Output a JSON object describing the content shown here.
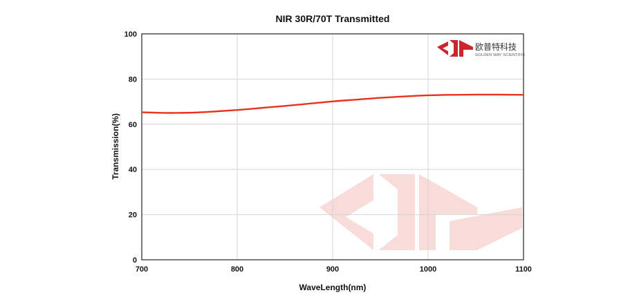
{
  "chart_data": {
    "type": "line",
    "title": "NIR 30R/70T Transmitted",
    "xlabel": "WaveLength(nm)",
    "ylabel": "Transmission(%)",
    "xlim": [
      700,
      1100
    ],
    "ylim": [
      0,
      100
    ],
    "xticks": [
      700,
      800,
      900,
      1000,
      1100
    ],
    "yticks": [
      0,
      20,
      40,
      60,
      80,
      100
    ],
    "grid": true,
    "series": [
      {
        "color": "#e8321e",
        "x": [
          700,
          725,
          750,
          775,
          800,
          825,
          850,
          875,
          900,
          925,
          950,
          975,
          1000,
          1025,
          1050,
          1075,
          1100
        ],
        "y": [
          65.3,
          65.0,
          65.1,
          65.6,
          66.3,
          67.2,
          68.1,
          69.1,
          70.1,
          70.9,
          71.7,
          72.3,
          72.8,
          73.0,
          73.1,
          73.1,
          73.0
        ]
      }
    ]
  },
  "brand": {
    "name_cn": "欧普特科技",
    "name_en": "GOLDEN WAY SCIENTIFIC",
    "logo_color": "#c8262c",
    "watermark_color": "#f7d7d5"
  }
}
